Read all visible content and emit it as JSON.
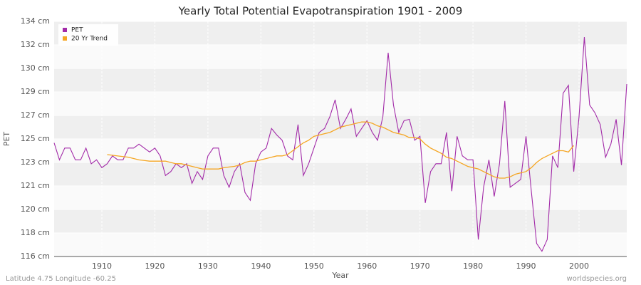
{
  "chart_data": {
    "type": "line",
    "title": "Yearly Total Potential Evapotranspiration 1901 - 2009",
    "x_label": "Year",
    "y_label": "PET",
    "footer_left": "Latitude 4.75 Longitude -60.25",
    "footer_right": "worldspecies.org",
    "x": [
      1901,
      1902,
      1903,
      1904,
      1905,
      1906,
      1907,
      1908,
      1909,
      1910,
      1911,
      1912,
      1913,
      1914,
      1915,
      1916,
      1917,
      1918,
      1919,
      1920,
      1921,
      1922,
      1923,
      1924,
      1925,
      1926,
      1927,
      1928,
      1929,
      1930,
      1931,
      1932,
      1933,
      1934,
      1935,
      1936,
      1937,
      1938,
      1939,
      1940,
      1941,
      1942,
      1943,
      1944,
      1945,
      1946,
      1947,
      1948,
      1949,
      1950,
      1951,
      1952,
      1953,
      1954,
      1955,
      1956,
      1957,
      1958,
      1959,
      1960,
      1961,
      1962,
      1963,
      1964,
      1965,
      1966,
      1967,
      1968,
      1969,
      1970,
      1971,
      1972,
      1973,
      1974,
      1975,
      1976,
      1977,
      1978,
      1979,
      1980,
      1981,
      1982,
      1983,
      1984,
      1985,
      1986,
      1987,
      1988,
      1989,
      1990,
      1991,
      1992,
      1993,
      1994,
      1995,
      1996,
      1997,
      1998,
      1999,
      2000,
      2001,
      2002,
      2003,
      2004,
      2005,
      2006,
      2007,
      2008,
      2009
    ],
    "series": [
      {
        "name": "PET",
        "color": "#a22aa8",
        "values": [
          124.7,
          123.4,
          124.3,
          124.3,
          123.4,
          123.4,
          124.3,
          123.1,
          123.4,
          122.8,
          123.1,
          123.7,
          123.4,
          123.4,
          124.3,
          124.3,
          124.6,
          124.3,
          124.0,
          124.3,
          123.7,
          122.2,
          122.5,
          123.1,
          122.8,
          123.1,
          121.6,
          122.5,
          121.9,
          123.7,
          124.3,
          124.3,
          122.2,
          121.3,
          122.5,
          123.1,
          120.9,
          120.3,
          123.1,
          124.0,
          124.3,
          125.8,
          125.3,
          124.9,
          123.7,
          123.4,
          126.1,
          122.2,
          123.1,
          124.3,
          125.5,
          125.8,
          126.7,
          128.0,
          125.8,
          126.5,
          127.3,
          125.2,
          125.8,
          126.4,
          125.5,
          124.9,
          126.7,
          131.6,
          127.6,
          125.5,
          126.4,
          126.5,
          124.9,
          125.2,
          120.1,
          122.5,
          123.1,
          123.1,
          125.5,
          121.0,
          125.2,
          123.7,
          123.4,
          123.4,
          117.3,
          121.3,
          123.4,
          120.6,
          123.1,
          127.9,
          121.3,
          121.6,
          121.9,
          125.2,
          121.0,
          117.0,
          116.4,
          117.3,
          123.7,
          122.8,
          128.5,
          129.1,
          122.5,
          126.7,
          132.8,
          127.6,
          127.0,
          126.1,
          123.6,
          124.6,
          126.5,
          123.0,
          129.2
        ]
      },
      {
        "name": "20 Yr Trend",
        "color": "#f5a623",
        "values": [
          null,
          null,
          null,
          null,
          null,
          null,
          null,
          null,
          null,
          null,
          123.8,
          123.75,
          123.7,
          123.65,
          123.6,
          123.5,
          123.4,
          123.35,
          123.3,
          123.3,
          123.3,
          123.3,
          123.2,
          123.1,
          123.1,
          123.0,
          122.9,
          122.8,
          122.7,
          122.7,
          122.7,
          122.7,
          122.8,
          122.85,
          122.9,
          123.0,
          123.2,
          123.3,
          123.3,
          123.4,
          123.5,
          123.6,
          123.7,
          123.7,
          123.8,
          124.1,
          124.4,
          124.7,
          124.9,
          125.2,
          125.3,
          125.4,
          125.5,
          125.7,
          125.9,
          126.0,
          126.1,
          126.2,
          126.3,
          126.3,
          126.2,
          126.0,
          125.9,
          125.7,
          125.5,
          125.4,
          125.3,
          125.1,
          125.1,
          125.0,
          124.6,
          124.3,
          124.1,
          123.9,
          123.6,
          123.5,
          123.3,
          123.1,
          122.9,
          122.8,
          122.7,
          122.5,
          122.3,
          122.1,
          122.0,
          122.0,
          122.1,
          122.3,
          122.4,
          122.5,
          122.8,
          123.2,
          123.5,
          123.7,
          123.9,
          124.1,
          124.1,
          124.0,
          124.5,
          null,
          null,
          null,
          null,
          null,
          null,
          null,
          null,
          null,
          null
        ]
      }
    ],
    "xlim": [
      1901,
      2009
    ],
    "xticks": [
      1910,
      1920,
      1930,
      1940,
      1950,
      1960,
      1970,
      1980,
      1990,
      2000
    ],
    "ylim": [
      116,
      134
    ],
    "yticks": [
      {
        "value": 116,
        "label": "116 cm"
      },
      {
        "value": 117.8,
        "label": "118 cm"
      },
      {
        "value": 119.6,
        "label": "120 cm"
      },
      {
        "value": 121.4,
        "label": "121 cm"
      },
      {
        "value": 123.2,
        "label": "123 cm"
      },
      {
        "value": 125,
        "label": "125 cm"
      },
      {
        "value": 126.8,
        "label": "127 cm"
      },
      {
        "value": 128.6,
        "label": "129 cm"
      },
      {
        "value": 130.4,
        "label": "130 cm"
      },
      {
        "value": 132.2,
        "label": "132 cm"
      },
      {
        "value": 134,
        "label": "134 cm"
      }
    ],
    "grid": true,
    "legend": "top-left"
  }
}
